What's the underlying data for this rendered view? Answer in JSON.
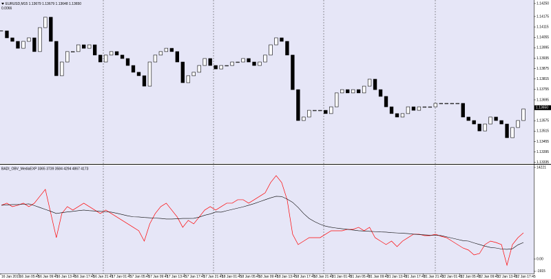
{
  "chart_data": [
    {
      "type": "candlestick",
      "title": "EURUSD,M15 1.13679 1.13679 1.13648 1.13650",
      "subtitle": "0.0066",
      "color": "#000000",
      "values": [
        1.14092,
        1.14052,
        1.14032,
        1.13992,
        1.14032,
        1.14052,
        1.13973,
        1.14111,
        1.14171,
        1.14032,
        1.13834,
        1.13913,
        1.13973,
        1.13973,
        1.14012,
        1.13992,
        1.14012,
        1.13953,
        1.13913,
        1.13953,
        1.13973,
        1.13953,
        1.13933,
        1.13893,
        1.13854,
        1.13834,
        1.13774,
        1.13913,
        1.13953,
        1.13973,
        1.13992,
        1.13973,
        1.13913,
        1.13794,
        1.13834,
        1.13854,
        1.13893,
        1.13933,
        1.13893,
        1.13873,
        1.13893,
        1.13893,
        1.13913,
        1.13913,
        1.13933,
        1.13913,
        1.13893,
        1.13913,
        1.13953,
        1.14012,
        1.14052,
        1.14032,
        1.13953,
        1.13754,
        1.13576,
        1.13596,
        1.13635,
        1.13635,
        1.13635,
        1.13616,
        1.13655,
        1.13735,
        1.13754,
        1.13735,
        1.13754,
        1.13735,
        1.13774,
        1.13814,
        1.13754,
        1.13715,
        1.13655,
        1.13616,
        1.13596,
        1.13616,
        1.13655,
        1.13635,
        1.13655,
        1.13655,
        1.13655,
        1.13675,
        1.13675,
        1.13675,
        1.13675,
        1.13675,
        1.13596,
        1.13576,
        1.13556,
        1.13516,
        1.13556,
        1.13596,
        1.13576,
        1.13556,
        1.13477,
        1.13536,
        1.13576,
        1.13643
      ],
      "ylim": [
        1.1333,
        1.1427
      ],
      "yticks": [
        {
          "value": 1.1425,
          "label": "1.14250"
        },
        {
          "value": 1.14175,
          "label": "1.14175"
        },
        {
          "value": 1.14115,
          "label": "1.14115"
        },
        {
          "value": 1.14055,
          "label": "1.14055"
        },
        {
          "value": 1.13995,
          "label": "1.13995"
        },
        {
          "value": 1.13935,
          "label": "1.13935"
        },
        {
          "value": 1.13875,
          "label": "1.13875"
        },
        {
          "value": 1.13815,
          "label": "1.13815"
        },
        {
          "value": 1.13755,
          "label": "1.13755"
        },
        {
          "value": 1.13695,
          "label": "1.13695"
        },
        {
          "value": 1.13575,
          "label": "1.13575"
        },
        {
          "value": 1.13515,
          "label": "1.13515"
        },
        {
          "value": 1.13455,
          "label": "1.13455"
        },
        {
          "value": 1.13395,
          "label": "1.13395"
        },
        {
          "value": 1.13335,
          "label": "1.13335"
        }
      ],
      "current_price": {
        "value": 1.1365,
        "label": "1.13650"
      }
    },
    {
      "type": "line",
      "title": "BADI_OBV_MediaEXP 3365 3739 3584 4294 4867 4173",
      "series": [
        {
          "color": "#ff0000",
          "values": [
            8346,
            8667,
            8132,
            8346,
            8667,
            8132,
            8667,
            9737,
            10807,
            7062,
            3317,
            7062,
            8132,
            7597,
            8132,
            8667,
            8132,
            7597,
            7062,
            7597,
            7062,
            6527,
            5992,
            5457,
            4922,
            4387,
            2782,
            5457,
            7062,
            8132,
            8667,
            7597,
            6527,
            4922,
            5992,
            5457,
            6527,
            7597,
            8132,
            7597,
            8132,
            8667,
            8667,
            9202,
            9202,
            8667,
            9202,
            9737,
            10272,
            11877,
            12947,
            11877,
            9202,
            3852,
            2247,
            2782,
            3317,
            3317,
            3317,
            3852,
            4387,
            4387,
            4387,
            4601,
            4601,
            4922,
            4387,
            4922,
            3317,
            2782,
            2247,
            2782,
            1926,
            2782,
            3317,
            3852,
            3852,
            3638,
            3638,
            3852,
            3531,
            3317,
            2782,
            2247,
            1712,
            1391,
            642,
            856,
            2247,
            2782,
            2568,
            2247,
            -963,
            2247,
            3317,
            4066
          ]
        },
        {
          "color": "#000000",
          "values": [
            8346,
            8400,
            8450,
            8450,
            8500,
            8560,
            8300,
            8000,
            7700,
            7400,
            7062,
            7200,
            7300,
            7400,
            7500,
            7597,
            7500,
            7450,
            7400,
            7350,
            7276,
            7100,
            6900,
            6700,
            6550,
            6527,
            6450,
            6400,
            6350,
            6300,
            6206,
            6206,
            6250,
            6300,
            6300,
            6313,
            6500,
            6800,
            7000,
            7300,
            7276,
            7500,
            7700,
            7900,
            8100,
            8346,
            8600,
            8900,
            9200,
            9500,
            9737,
            9700,
            9300,
            8800,
            8000,
            7062,
            6300,
            5800,
            5400,
            5100,
            4922,
            4800,
            4700,
            4600,
            4500,
            4387,
            4350,
            4300,
            4250,
            4200,
            4173,
            4100,
            4050,
            4000,
            3950,
            3852,
            3800,
            3750,
            3700,
            3680,
            3638,
            3450,
            3250,
            3050,
            2850,
            2782,
            2500,
            2250,
            2000,
            1800,
            1712,
            1550,
            1500,
            1600,
            2200,
            2568
          ]
        }
      ],
      "ylim": [
        -2245,
        14542
      ],
      "yticks": [
        14221,
        {
          "value": 0,
          "label": "0.00"
        },
        -1915
      ],
      "xtick_labels": [
        "16 Jan 2019",
        "16 Jan 05:45",
        "16 Jan 09:45",
        "16 Jan 13:45",
        "16 Jan 17:45",
        "16 Jan 21:45",
        "17 Jan 01:45",
        "17 Jan 05:45",
        "17 Jan 09:45",
        "17 Jan 13:45",
        "17 Jan 17:45",
        "17 Jan 21:45",
        "18 Jan 01:45",
        "18 Jan 05:45",
        "18 Jan 09:45",
        "18 Jan 13:45",
        "18 Jan 17:45",
        "18 Jan 21:45",
        "21 Jan 01:45",
        "21 Jan 05:45",
        "21 Jan 09:45",
        "21 Jan 13:45",
        "21 Jan 17:45",
        "21 Jan 21:45",
        "22 Jan 01:45",
        "22 Jan 05:45",
        "22 Jan 09:45",
        "22 Jan 13:45",
        "22 Jan 17:45"
      ]
    }
  ]
}
